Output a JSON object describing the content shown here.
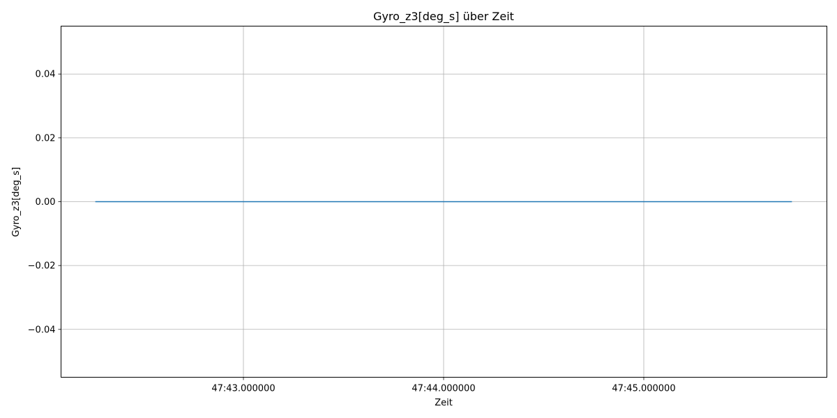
{
  "chart_data": {
    "type": "line",
    "title": "Gyro_z3[deg_s] über Zeit",
    "xlabel": "Zeit",
    "ylabel": "Gyro_z3[deg_s]",
    "x_ticks": [
      "47:43.000000",
      "47:44.000000",
      "47:45.000000"
    ],
    "y_ticks": [
      "0.04",
      "0.02",
      "0.00",
      "−0.02",
      "−0.04"
    ],
    "ylim": [
      -0.055,
      0.055
    ],
    "grid": true,
    "series": [
      {
        "color": "#1f77b4",
        "x": [
          "47:42.26",
          "47:45.74"
        ],
        "values": [
          0,
          0
        ]
      }
    ]
  }
}
